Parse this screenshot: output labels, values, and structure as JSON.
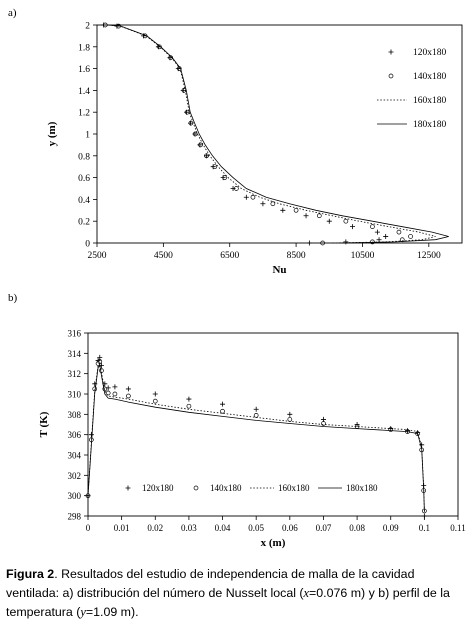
{
  "chart_data": [
    {
      "panel": "a)",
      "type": "line",
      "xlabel": "Nu",
      "ylabel": "y (m)",
      "xlim": [
        2500,
        13500
      ],
      "ylim": [
        0,
        2
      ],
      "xticks": [
        "2500",
        "4500",
        "6500",
        "8500",
        "10500",
        "12500"
      ],
      "yticks": [
        "0",
        "0.2",
        "0.4",
        "0.6",
        "0.8",
        "1",
        "1.2",
        "1.4",
        "1.6",
        "1.8",
        "2"
      ],
      "grid": false,
      "legend_position": "right",
      "series": [
        {
          "name": "120x180",
          "marker": "plus",
          "line": "none",
          "x": [
            8900,
            10000,
            11000,
            11200,
            10950,
            10200,
            9500,
            8800,
            8100,
            7500,
            7000,
            6600,
            6300,
            6000,
            5800,
            5600,
            5450,
            5320,
            5200,
            5100,
            4950,
            4700,
            4350,
            3900,
            3100,
            2700
          ],
          "y": [
            0,
            0.01,
            0.03,
            0.06,
            0.1,
            0.15,
            0.2,
            0.25,
            0.3,
            0.36,
            0.42,
            0.5,
            0.6,
            0.7,
            0.8,
            0.9,
            1.0,
            1.1,
            1.2,
            1.4,
            1.6,
            1.7,
            1.8,
            1.9,
            1.99,
            2.0
          ]
        },
        {
          "name": "140x180",
          "marker": "circle",
          "line": "none",
          "x": [
            9300,
            10800,
            11700,
            11950,
            11600,
            10800,
            10000,
            9200,
            8500,
            7800,
            7200,
            6700,
            6350,
            6050,
            5800,
            5620,
            5460,
            5330,
            5220,
            5120,
            4980,
            4720,
            4380,
            3950,
            3150,
            2750
          ],
          "y": [
            0,
            0.01,
            0.03,
            0.06,
            0.1,
            0.15,
            0.2,
            0.25,
            0.3,
            0.36,
            0.42,
            0.5,
            0.6,
            0.7,
            0.8,
            0.9,
            1.0,
            1.1,
            1.2,
            1.4,
            1.6,
            1.7,
            1.8,
            1.9,
            1.99,
            2.0
          ]
        },
        {
          "name": "160x180",
          "marker": "none",
          "line": "dotted",
          "x": [
            9600,
            11200,
            12300,
            12700,
            12200,
            11300,
            10400,
            9600,
            8800,
            8000,
            7400,
            6850,
            6450,
            6150,
            5900,
            5700,
            5530,
            5400,
            5280,
            5160,
            5000,
            4750,
            4400,
            3980,
            3200,
            2800
          ],
          "y": [
            0,
            0.01,
            0.03,
            0.06,
            0.1,
            0.15,
            0.2,
            0.25,
            0.3,
            0.36,
            0.42,
            0.5,
            0.6,
            0.7,
            0.8,
            0.9,
            1.0,
            1.1,
            1.2,
            1.4,
            1.6,
            1.7,
            1.8,
            1.9,
            1.99,
            2.0
          ]
        },
        {
          "name": "180x180",
          "marker": "none",
          "line": "solid",
          "x": [
            9800,
            11500,
            12700,
            13100,
            12600,
            11700,
            10800,
            9900,
            9100,
            8300,
            7600,
            7000,
            6600,
            6250,
            5980,
            5760,
            5580,
            5440,
            5310,
            5190,
            5020,
            4770,
            4420,
            4000,
            3220,
            2820
          ],
          "y": [
            0,
            0.01,
            0.03,
            0.06,
            0.1,
            0.15,
            0.2,
            0.25,
            0.3,
            0.36,
            0.42,
            0.5,
            0.6,
            0.7,
            0.8,
            0.9,
            1.0,
            1.1,
            1.2,
            1.4,
            1.6,
            1.7,
            1.8,
            1.9,
            1.99,
            2.0
          ]
        }
      ]
    },
    {
      "panel": "b)",
      "type": "line",
      "xlabel": "x (m)",
      "ylabel": "T (K)",
      "xlim": [
        0,
        0.11
      ],
      "ylim": [
        298,
        316
      ],
      "xticks": [
        "0",
        "0.01",
        "0.02",
        "0.03",
        "0.04",
        "0.05",
        "0.06",
        "0.07",
        "0.08",
        "0.09",
        "0.1",
        "0.11"
      ],
      "yticks": [
        "298",
        "300",
        "302",
        "304",
        "306",
        "308",
        "310",
        "312",
        "314",
        "316"
      ],
      "grid": false,
      "legend_position": "bottom",
      "series": [
        {
          "name": "120x180",
          "marker": "plus",
          "line": "none",
          "x": [
            0,
            0.001,
            0.002,
            0.003,
            0.0035,
            0.004,
            0.005,
            0.006,
            0.008,
            0.012,
            0.02,
            0.03,
            0.04,
            0.05,
            0.06,
            0.07,
            0.08,
            0.09,
            0.095,
            0.098,
            0.0992,
            0.0998,
            0.1
          ],
          "y": [
            300.0,
            306.0,
            311.0,
            313.3,
            313.6,
            312.8,
            311.0,
            310.6,
            310.7,
            310.5,
            310.0,
            309.5,
            309.0,
            308.5,
            308.0,
            307.5,
            307.0,
            306.6,
            306.4,
            306.2,
            305.0,
            301.0,
            298.0
          ]
        },
        {
          "name": "140x180",
          "marker": "circle",
          "line": "none",
          "x": [
            0,
            0.001,
            0.002,
            0.003,
            0.0035,
            0.004,
            0.005,
            0.006,
            0.008,
            0.012,
            0.02,
            0.03,
            0.04,
            0.05,
            0.06,
            0.07,
            0.08,
            0.09,
            0.095,
            0.098,
            0.0992,
            0.0998,
            0.1
          ],
          "y": [
            300.0,
            305.5,
            310.5,
            313.0,
            313.2,
            312.3,
            310.5,
            310.1,
            310.0,
            309.8,
            309.3,
            308.8,
            308.3,
            307.9,
            307.5,
            307.1,
            306.8,
            306.5,
            306.3,
            306.1,
            304.5,
            300.5,
            298.5
          ]
        },
        {
          "name": "160x180",
          "marker": "none",
          "line": "dotted",
          "x": [
            0,
            0.001,
            0.002,
            0.003,
            0.0035,
            0.004,
            0.005,
            0.006,
            0.008,
            0.012,
            0.02,
            0.03,
            0.04,
            0.05,
            0.06,
            0.07,
            0.08,
            0.09,
            0.095,
            0.098,
            0.0992,
            0.0998,
            0.1
          ],
          "y": [
            300.0,
            305.3,
            310.3,
            312.8,
            313.0,
            312.1,
            310.3,
            309.8,
            309.7,
            309.5,
            309.0,
            308.5,
            308.1,
            307.7,
            307.3,
            307.0,
            306.8,
            306.6,
            306.5,
            306.3,
            304.8,
            300.8,
            298.5
          ]
        },
        {
          "name": "180x180",
          "marker": "none",
          "line": "solid",
          "x": [
            0,
            0.001,
            0.002,
            0.003,
            0.0035,
            0.004,
            0.005,
            0.006,
            0.008,
            0.012,
            0.02,
            0.03,
            0.04,
            0.05,
            0.06,
            0.07,
            0.08,
            0.09,
            0.095,
            0.098,
            0.0992,
            0.0998,
            0.1
          ],
          "y": [
            300.0,
            305.0,
            310.0,
            312.6,
            312.8,
            311.8,
            310.0,
            309.6,
            309.5,
            309.2,
            308.7,
            308.2,
            307.8,
            307.4,
            307.1,
            306.8,
            306.6,
            306.4,
            306.3,
            306.1,
            304.6,
            300.6,
            298.4
          ]
        }
      ]
    }
  ],
  "caption": {
    "lead": "Figura 2",
    "text": ". Resultados del estudio de independencia de malla de la cavidad ventilada: a) distribución del número de  Nusselt  local (",
    "v1": "x",
    "text2": "=0.076 m) y b) perfil de la temperatura (",
    "v2": "y",
    "text3": "=1.09 m)."
  }
}
